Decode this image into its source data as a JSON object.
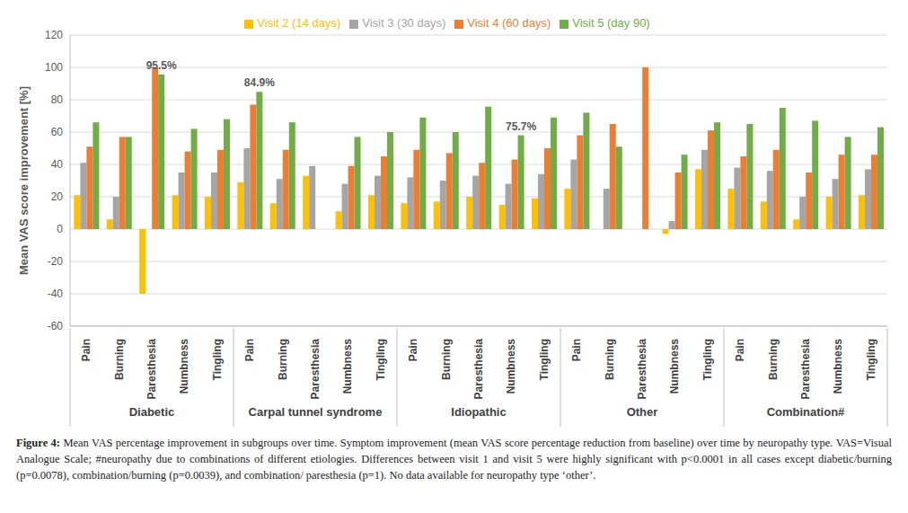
{
  "chart_data": {
    "type": "bar",
    "y_label": "Mean VAS score improvement [%]",
    "categories": [
      "Pain",
      "Burning",
      "Paresthesia",
      "Numbness",
      "Tingling",
      "Pain",
      "Burning",
      "Paresthesia",
      "Numbness",
      "Tingling",
      "Pain",
      "Burning",
      "Paresthesia",
      "Numbness",
      "Tingling",
      "Pain",
      "Burning",
      "Paresthesia",
      "Numbness",
      "Tingling",
      "Pain",
      "Burning",
      "Paresthesia",
      "Numbness",
      "Tingling"
    ],
    "groups": [
      "Diabetic",
      "Carpal tunnel syndrome",
      "Idiopathic",
      "Other",
      "Combination#"
    ],
    "series": [
      {
        "name": "Visit 2 (14 days)",
        "color": "#FFC000",
        "values": [
          21,
          6,
          -40,
          21,
          20,
          29,
          16,
          33,
          11,
          21,
          16,
          17,
          20,
          15,
          19,
          25,
          null,
          null,
          -3,
          37,
          25,
          17,
          6,
          20,
          21
        ]
      },
      {
        "name": "Visit 3 (30 days)",
        "color": "#A5A5A5",
        "values": [
          41,
          20,
          null,
          35,
          35,
          50,
          31,
          39,
          28,
          33,
          32,
          30,
          33,
          28,
          34,
          43,
          25,
          null,
          5,
          49,
          38,
          36,
          20,
          31,
          37
        ]
      },
      {
        "name": "Visit 4 (60 days)",
        "color": "#ED7D31",
        "values": [
          51,
          57,
          100,
          48,
          49,
          77,
          49,
          null,
          39,
          45,
          49,
          47,
          41,
          43,
          50,
          58,
          65,
          100,
          35,
          61,
          45,
          49,
          35,
          46,
          46
        ]
      },
      {
        "name": "Visit 5 (day 90)",
        "color": "#70AD47",
        "values": [
          66,
          57,
          95.5,
          62,
          68,
          84.9,
          66,
          null,
          57,
          60,
          69,
          60,
          75.7,
          58,
          69,
          72,
          51,
          null,
          46,
          66,
          65,
          75,
          67,
          57,
          63
        ],
        "value_labels": [
          null,
          null,
          "95.5%",
          null,
          null,
          "84.9%",
          null,
          null,
          null,
          null,
          null,
          null,
          "75.7%",
          null,
          null,
          null,
          null,
          null,
          null,
          null,
          null,
          null,
          null,
          null,
          null
        ]
      }
    ],
    "ylim": [
      -60,
      120
    ],
    "yticks": [
      -60,
      -40,
      -20,
      0,
      20,
      40,
      60,
      80,
      100,
      120
    ],
    "grid": true,
    "legend": "top",
    "caption_label": "Figure 4:",
    "caption": "Mean VAS percentage improvement in subgroups over time. Symptom improvement (mean VAS score percentage reduction from baseline) over time by neuropathy type. VAS=Visual Analogue Scale; #neuropathy due to combinations of different etiologies. Differences between visit 1 and visit 5 were highly significant with p<0.0001 in all cases except diabetic/burning (p=0.0078), combination/burning (p=0.0039), and combination/ paresthesia (p=1). No data available for neuropathy type ‘other’."
  }
}
